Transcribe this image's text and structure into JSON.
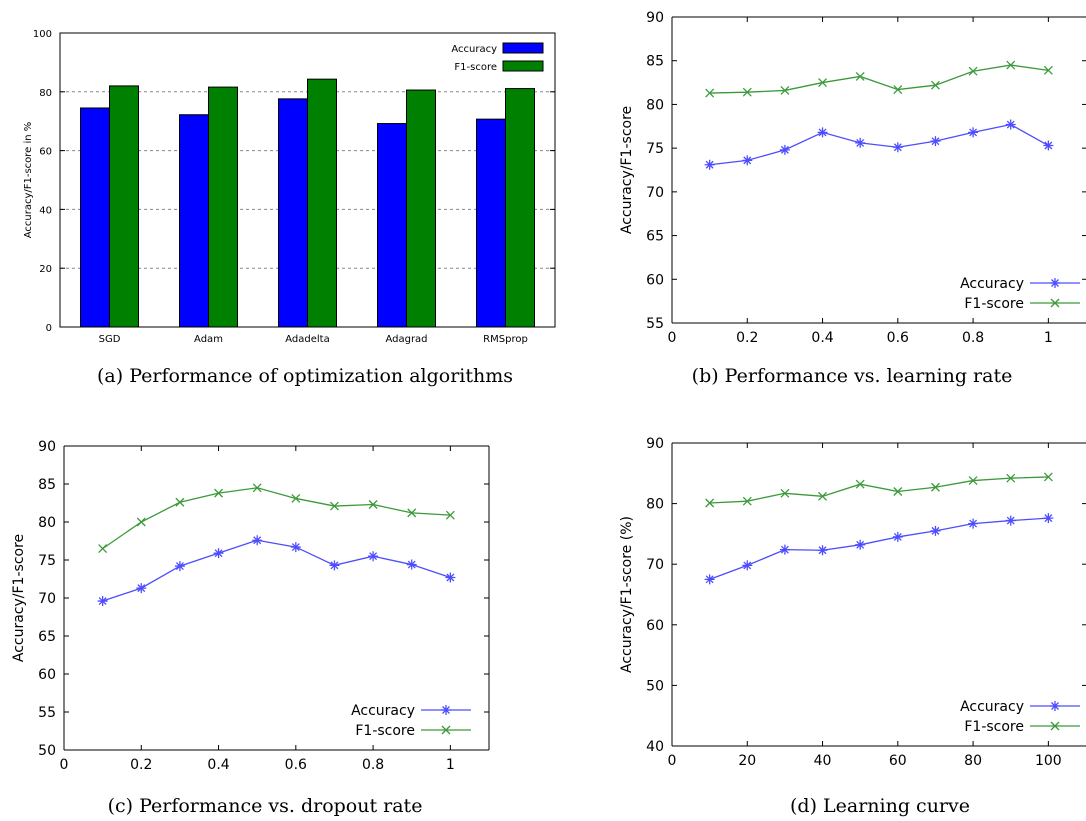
{
  "chart_data": [
    {
      "type": "bar",
      "caption": "(a) Performance of optimization algorithms",
      "ylabel": "Accuracy/F1-score in %",
      "xlabel": "",
      "categories": [
        "SGD",
        "Adam",
        "Adadelta",
        "Adagrad",
        "RMSprop"
      ],
      "series": [
        {
          "name": "Accuracy",
          "values": [
            74.5,
            72.2,
            77.6,
            69.2,
            70.7
          ],
          "color": "#0000ff"
        },
        {
          "name": "F1-score",
          "values": [
            82.0,
            81.6,
            84.3,
            80.6,
            81.1
          ],
          "color": "#008000"
        }
      ],
      "ylim": [
        0,
        100
      ],
      "yticks": [
        "0",
        "20",
        "40",
        "60",
        "80",
        "100"
      ],
      "yticks_v": [
        0,
        20,
        40,
        60,
        80,
        100
      ],
      "grid": true,
      "legend": "top-right"
    },
    {
      "type": "line",
      "caption": "(b) Performance vs. learning rate",
      "ylabel": "Accuracy/F1-score",
      "xlabel": "",
      "x": [
        0.1,
        0.2,
        0.3,
        0.4,
        0.5,
        0.6,
        0.7,
        0.8,
        0.9,
        1.0
      ],
      "series": [
        {
          "name": "Accuracy",
          "values": [
            73.1,
            73.6,
            74.8,
            76.8,
            75.6,
            75.1,
            75.8,
            76.8,
            77.7,
            75.3
          ],
          "color": "#4d4dff"
        },
        {
          "name": "F1-score",
          "values": [
            81.3,
            81.4,
            81.6,
            82.5,
            83.2,
            81.7,
            82.2,
            83.8,
            84.5,
            83.9
          ],
          "color": "#3a9a3a"
        }
      ],
      "xlim": [
        0,
        1.1
      ],
      "ylim": [
        55,
        90
      ],
      "xticks": [
        "0",
        "0.2",
        "0.4",
        "0.6",
        "0.8",
        "1"
      ],
      "xticks_v": [
        0,
        0.2,
        0.4,
        0.6,
        0.8,
        1.0
      ],
      "yticks": [
        "55",
        "60",
        "65",
        "70",
        "75",
        "80",
        "85",
        "90"
      ],
      "yticks_v": [
        55,
        60,
        65,
        70,
        75,
        80,
        85,
        90
      ],
      "grid": false,
      "legend": "bottom-right"
    },
    {
      "type": "line",
      "caption": "(c) Performance vs. dropout rate",
      "ylabel": "Accuracy/F1-score",
      "xlabel": "",
      "x": [
        0.1,
        0.2,
        0.3,
        0.4,
        0.5,
        0.6,
        0.7,
        0.8,
        0.9,
        1.0
      ],
      "series": [
        {
          "name": "Accuracy",
          "values": [
            69.6,
            71.3,
            74.2,
            75.9,
            77.6,
            76.7,
            74.3,
            75.5,
            74.4,
            72.7
          ],
          "color": "#4d4dff"
        },
        {
          "name": "F1-score",
          "values": [
            76.5,
            80.0,
            82.6,
            83.8,
            84.5,
            83.1,
            82.1,
            82.3,
            81.2,
            80.9
          ],
          "color": "#3a9a3a"
        }
      ],
      "xlim": [
        0,
        1.1
      ],
      "ylim": [
        50,
        90
      ],
      "xticks": [
        "0",
        "0.2",
        "0.4",
        "0.6",
        "0.8",
        "1"
      ],
      "xticks_v": [
        0,
        0.2,
        0.4,
        0.6,
        0.8,
        1.0
      ],
      "yticks": [
        "50",
        "55",
        "60",
        "65",
        "70",
        "75",
        "80",
        "85",
        "90"
      ],
      "yticks_v": [
        50,
        55,
        60,
        65,
        70,
        75,
        80,
        85,
        90
      ],
      "grid": false,
      "legend": "bottom-right"
    },
    {
      "type": "line",
      "caption": "(d) Learning curve",
      "ylabel": "Accuracy/F1-score (%)",
      "xlabel": "",
      "x": [
        10,
        20,
        30,
        40,
        50,
        60,
        70,
        80,
        90,
        100
      ],
      "series": [
        {
          "name": "Accuracy",
          "values": [
            67.5,
            69.8,
            72.4,
            72.3,
            73.2,
            74.5,
            75.5,
            76.7,
            77.2,
            77.6
          ],
          "color": "#4d4dff"
        },
        {
          "name": "F1-score",
          "values": [
            80.1,
            80.4,
            81.7,
            81.2,
            83.2,
            82.0,
            82.7,
            83.8,
            84.2,
            84.4
          ],
          "color": "#3a9a3a"
        }
      ],
      "xlim": [
        0,
        110
      ],
      "ylim": [
        40,
        90
      ],
      "xticks": [
        "0",
        "20",
        "40",
        "60",
        "80",
        "100"
      ],
      "xticks_v": [
        0,
        20,
        40,
        60,
        80,
        100
      ],
      "yticks": [
        "40",
        "50",
        "60",
        "70",
        "80",
        "90"
      ],
      "yticks_v": [
        40,
        50,
        60,
        70,
        80,
        90
      ],
      "grid": false,
      "legend": "bottom-right"
    }
  ]
}
